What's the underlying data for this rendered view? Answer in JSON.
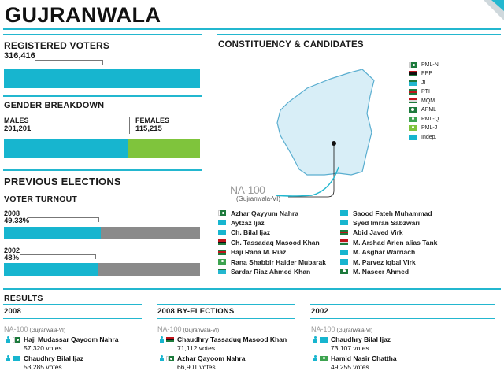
{
  "title": "GUJRANWALA",
  "registered_voters": {
    "label": "REGISTERED VOTERS",
    "value": "316,416"
  },
  "gender": {
    "label": "GENDER BREAKDOWN",
    "males_label": "MALES",
    "males_value": "201,201",
    "females_label": "FEMALES",
    "females_value": "115,215",
    "male_share": 0.636
  },
  "previous_elections": {
    "label": "PREVIOUS ELECTIONS",
    "turnout_label": "VOTER TURNOUT",
    "years": [
      {
        "year": "2008",
        "pct": "49.33%",
        "fraction": 0.4933
      },
      {
        "year": "2002",
        "pct": "48%",
        "fraction": 0.48
      }
    ]
  },
  "constituency": {
    "label": "CONSTITUENCY & CANDIDATES",
    "code": "NA-100",
    "subname": "(Gujranwala-VI)"
  },
  "party_legend": [
    {
      "name": "PML-N",
      "icon": "pml-n-flag"
    },
    {
      "name": "PPP",
      "icon": "ppp-flag"
    },
    {
      "name": "JI",
      "icon": "ji-flag"
    },
    {
      "name": "PTI",
      "icon": "pti-flag"
    },
    {
      "name": "MQM",
      "icon": "mqm-flag"
    },
    {
      "name": "APML",
      "icon": "apml-flag"
    },
    {
      "name": "PML-Q",
      "icon": "pml-q-flag"
    },
    {
      "name": "PML-J",
      "icon": "pml-j-flag"
    },
    {
      "name": "Indep.",
      "icon": "independent-flag"
    }
  ],
  "candidates_left": [
    {
      "name": "Azhar Qayyum Nahra",
      "party": "PML-N"
    },
    {
      "name": "Aytzaz Ijaz",
      "party": "Indep."
    },
    {
      "name": "Ch. Bilal Ijaz",
      "party": "Indep."
    },
    {
      "name": "Ch. Tassadaq Masood Khan",
      "party": "PPP"
    },
    {
      "name": "Haji Rana M. Riaz",
      "party": "PTI"
    },
    {
      "name": "Rana Shabbir Haider Mubarak",
      "party": "PML-Q"
    },
    {
      "name": "Sardar Riaz Ahmed Khan",
      "party": "JI"
    }
  ],
  "candidates_right": [
    {
      "name": "Saood Fateh Muhammad",
      "party": "Indep."
    },
    {
      "name": "Syed Imran Sabzwari",
      "party": "Indep."
    },
    {
      "name": "Abid Javed Virk",
      "party": "PTI"
    },
    {
      "name": "M. Arshad Arien alias Tank",
      "party": "MQM"
    },
    {
      "name": "M. Asghar Warriach",
      "party": "Indep."
    },
    {
      "name": "M. Parvez Iqbal Virk",
      "party": "Indep."
    },
    {
      "name": "M. Naseer Ahmed",
      "party": "APML"
    }
  ],
  "results": {
    "label": "RESULTS",
    "columns": [
      {
        "heading": "2008",
        "code": "NA-100",
        "sub": "(Gujranwala-VI)",
        "entries": [
          {
            "name": "Haji Mudassar Qayoom Nahra",
            "votes": "57,320 votes"
          },
          {
            "name": "Chaudhry Bilal Ijaz",
            "votes": "53,285 votes"
          }
        ]
      },
      {
        "heading": "2008 BY-ELECTIONS",
        "code": "NA-100",
        "sub": "(Gujranwala-VI)",
        "entries": [
          {
            "name": "Chaudhry Tassaduq Masood Khan",
            "votes": "71,112 votes"
          },
          {
            "name": "Azhar Qayoom Nahra",
            "votes": "66,901 votes"
          }
        ]
      },
      {
        "heading": "2002",
        "code": "NA-100",
        "sub": "(Gujranwala-VI)",
        "entries": [
          {
            "name": "Chaudhry Bilal Ijaz",
            "votes": "73,107 votes"
          },
          {
            "name": "Hamid Nasir Chattha",
            "votes": "49,255 votes"
          }
        ]
      }
    ]
  },
  "colors": {
    "accent": "#17b5cf",
    "female": "#7fc43c",
    "grey": "#8a8a8a",
    "map_fill": "#d8eef7"
  }
}
